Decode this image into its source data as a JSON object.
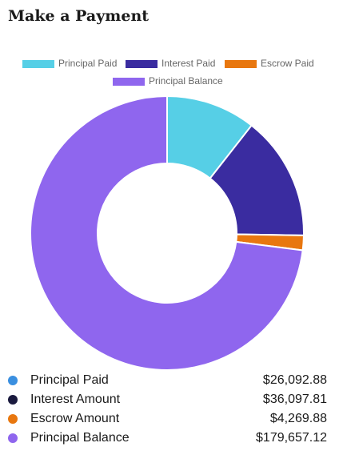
{
  "header": {
    "title": "Make a Payment"
  },
  "chart_data": {
    "type": "donut",
    "categories": [
      "Principal Paid",
      "Interest Paid",
      "Escrow Paid",
      "Principal Balance"
    ],
    "values": [
      26092.88,
      36097.81,
      4269.88,
      179657.12
    ],
    "colors": [
      "#56cfe6",
      "#3a2ca0",
      "#e8770f",
      "#8f66ee"
    ]
  },
  "summary": {
    "rows": [
      {
        "label": "Principal Paid",
        "amount": "$26,092.88"
      },
      {
        "label": "Interest Amount",
        "amount": "$36,097.81"
      },
      {
        "label": "Escrow Amount",
        "amount": "$4,269.88"
      },
      {
        "label": "Principal Balance",
        "amount": "$179,657.12"
      }
    ]
  }
}
